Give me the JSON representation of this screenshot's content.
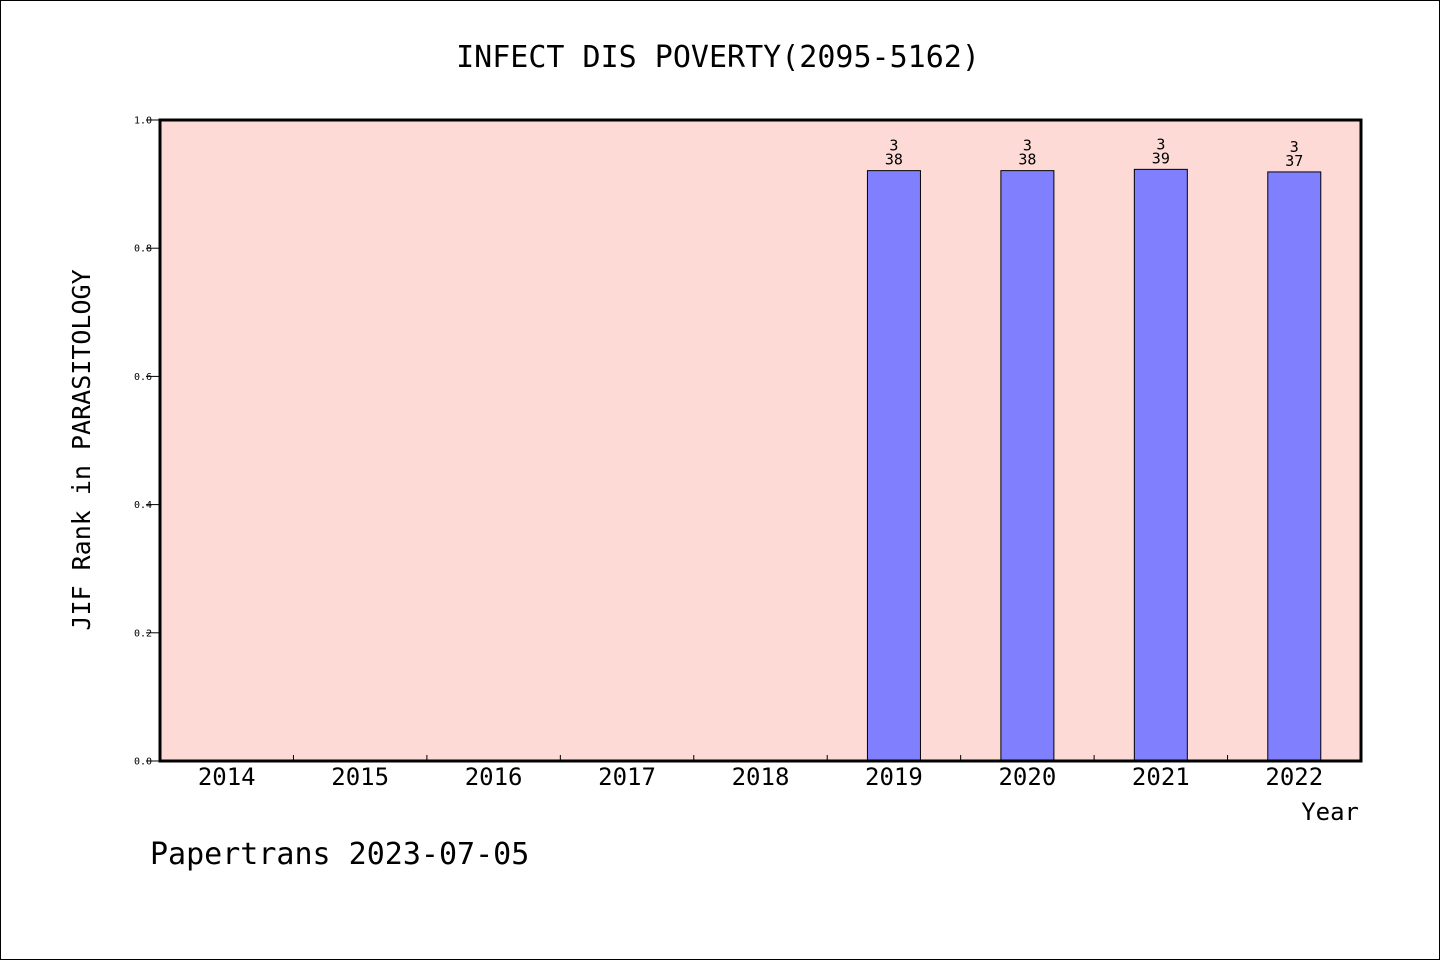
{
  "chart_data": {
    "type": "bar",
    "title": "INFECT DIS POVERTY(2095-5162)",
    "xlabel": "Year",
    "ylabel": "JIF Rank in PARASITOLOGY",
    "categories": [
      "2014",
      "2015",
      "2016",
      "2017",
      "2018",
      "2019",
      "2020",
      "2021",
      "2022"
    ],
    "values": [
      null,
      null,
      null,
      null,
      null,
      0.921,
      0.921,
      0.923,
      0.919
    ],
    "rank_labels": [
      null,
      null,
      null,
      null,
      null,
      {
        "rank": "3",
        "total": "38"
      },
      {
        "rank": "3",
        "total": "38"
      },
      {
        "rank": "3",
        "total": "39"
      },
      {
        "rank": "3",
        "total": "37"
      }
    ],
    "ylim": [
      0.0,
      1.0
    ],
    "yticks": [
      "0.0",
      "0.2",
      "0.4",
      "0.6",
      "0.8",
      "1.0"
    ],
    "grid": false,
    "colors": {
      "plot_background": "#fddad6",
      "bar_fill": "#8080ff",
      "bar_edge": "#000000"
    }
  },
  "footer": {
    "text": "Papertrans 2023-07-05"
  }
}
